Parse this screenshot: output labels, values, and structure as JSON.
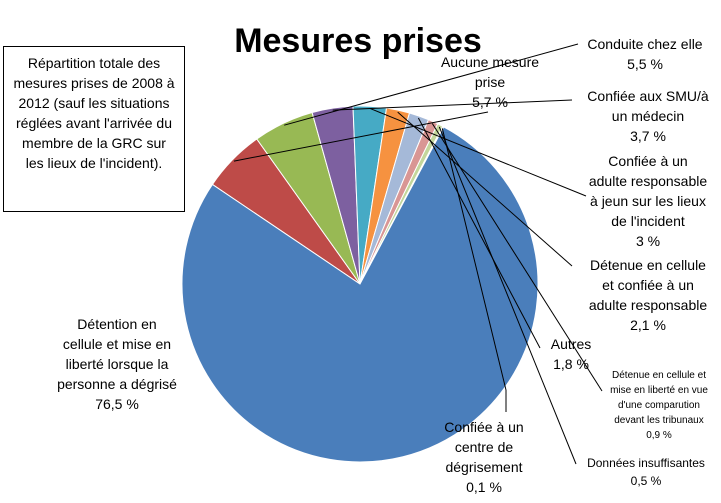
{
  "chart_data": {
    "type": "pie",
    "title": "Mesures prises",
    "note": "Répartition totale des mesures prises de 2008 à 2012 (sauf les situations réglées avant l'arrivée du membre de la GRC sur les lieux de l'incident).",
    "slices": [
      {
        "label": "Aucune mesure prise",
        "display": "5,7 %",
        "value": 5.7,
        "color": "#BE4B48"
      },
      {
        "label": "Conduite chez elle",
        "display": "5,5 %",
        "value": 5.5,
        "color": "#98B954"
      },
      {
        "label": "Confiée aux SMU/à un médecin",
        "display": "3,7 %",
        "value": 3.7,
        "color": "#7D60A0"
      },
      {
        "label": "Confiée à un adulte responsable à jeun sur les lieux de l'incident",
        "display": "3 %",
        "value": 3.0,
        "color": "#46AAC5"
      },
      {
        "label": "Détenue en cellule et confiée à un adulte responsable",
        "display": "2,1 %",
        "value": 2.1,
        "color": "#F69240"
      },
      {
        "label": "Autres",
        "display": "1,8 %",
        "value": 1.8,
        "color": "#A5B9D8"
      },
      {
        "label": "Détenue en cellule et mise en liberté en vue d'une comparution devant les tribunaux",
        "display": "0,9 %",
        "value": 0.9,
        "color": "#D99694"
      },
      {
        "label": "Données insuffisantes",
        "display": "0,5 %",
        "value": 0.5,
        "color": "#C3D69B"
      },
      {
        "label": "Confiée à un centre de dégrisement",
        "display": "0,1 %",
        "value": 0.1,
        "color": "#B3A2C7"
      },
      {
        "label": "Détention en cellule et mise en liberté lorsque la personne a dégrisé",
        "display": "76,5 %",
        "value": 76.5,
        "color": "#4A7EBB"
      }
    ]
  }
}
